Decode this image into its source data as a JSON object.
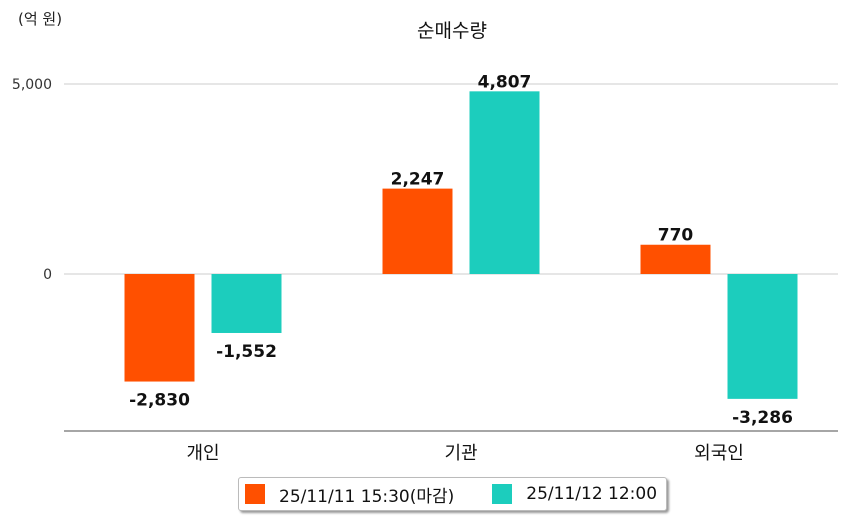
{
  "chart_data": {
    "type": "bar",
    "title": "순매수량",
    "unit_label": "(억 원)",
    "categories": [
      "개인",
      "기관",
      "외국인"
    ],
    "series": [
      {
        "name": "25/11/11 15:30(마감)",
        "color": "#ff5000",
        "values": [
          -2830,
          2247,
          770
        ],
        "labels": [
          "-2,830",
          "2,247",
          "770"
        ]
      },
      {
        "name": "25/11/12 12:00",
        "color": "#1ccdbd",
        "values": [
          -1552,
          4807,
          -3286
        ],
        "labels": [
          "-1,552",
          "4,807",
          "-3,286"
        ]
      }
    ],
    "yticks": [
      0,
      5000
    ],
    "ytick_labels": [
      "0",
      "5,000"
    ],
    "ylim": [
      -4130,
      5000
    ],
    "grid": true,
    "legend_position": "bottom"
  }
}
